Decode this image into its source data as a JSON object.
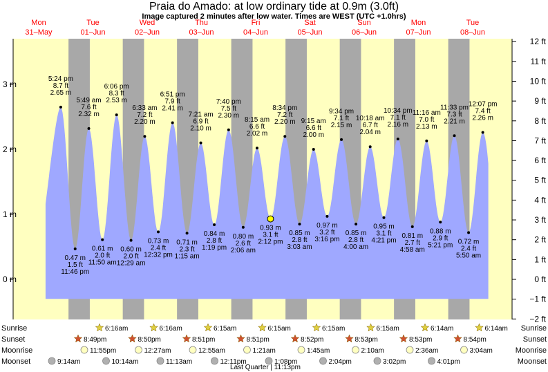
{
  "title": "Praia do Amado: at low  ordinary tide at 0.9m (3.0ft)",
  "subtitle": "Image captured 2 minutes after low water. Times are WEST (UTC +1.0hrs)",
  "colors": {
    "day": "#ffffc0",
    "night": "#a8a8a8",
    "water": "#9fa8ff",
    "date": "#ff0000",
    "sun_star": "#e0d040",
    "sunset_star": "#d05030",
    "moonrise": "#ffffc0",
    "moonset": "#b0b0b0"
  },
  "chart_data": {
    "type": "area",
    "title": "Praia do Amado: at low  ordinary tide at 0.9m (3.0ft)",
    "ylabel_left_unit": "m",
    "ylabel_right_unit": "ft",
    "ylim_m": [
      -0.78,
      3.82
    ],
    "left_ticks": [
      "0 m",
      "1 m",
      "2 m",
      "3 m"
    ],
    "right_ticks": [
      "−2 ft",
      "−1 ft",
      "0 ft",
      "1 ft",
      "2 ft",
      "3 ft",
      "4 ft",
      "5 ft",
      "6 ft",
      "7 ft",
      "8 ft",
      "9 ft",
      "10 ft",
      "11 ft",
      "12 ft"
    ],
    "days": [
      {
        "name": "Mon",
        "date": "31–May"
      },
      {
        "name": "Tue",
        "date": "01–Jun"
      },
      {
        "name": "Wed",
        "date": "02–Jun"
      },
      {
        "name": "Thu",
        "date": "03–Jun"
      },
      {
        "name": "Fri",
        "date": "04–Jun"
      },
      {
        "name": "Sat",
        "date": "05–Jun"
      },
      {
        "name": "Sun",
        "date": "06–Jun"
      },
      {
        "name": "Mon",
        "date": "07–Jun"
      },
      {
        "name": "Tue",
        "date": "08–Jun"
      }
    ],
    "current_level_m": 0.93,
    "extremes": [
      {
        "type": "high",
        "time": "5:24 pm",
        "ft": "8.7 ft",
        "m": 2.65,
        "m_label": "2.65 m"
      },
      {
        "type": "low",
        "time": "11:46 pm",
        "ft": "1.5 ft",
        "m": 0.47,
        "m_label": "0.47 m"
      },
      {
        "type": "high",
        "time": "5:49 am",
        "ft": "7.6 ft",
        "m": 2.32,
        "m_label": "2.32 m"
      },
      {
        "type": "low",
        "time": "11:50 am",
        "ft": "2.0 ft",
        "m": 0.61,
        "m_label": "0.61 m"
      },
      {
        "type": "high",
        "time": "6:06 pm",
        "ft": "8.3 ft",
        "m": 2.53,
        "m_label": "2.53 m"
      },
      {
        "type": "low",
        "time": "12:29 am",
        "ft": "2.0 ft",
        "m": 0.6,
        "m_label": "0.60 m"
      },
      {
        "type": "high",
        "time": "6:33 am",
        "ft": "7.2 ft",
        "m": 2.2,
        "m_label": "2.20 m"
      },
      {
        "type": "low",
        "time": "12:32 pm",
        "ft": "2.4 ft",
        "m": 0.73,
        "m_label": "0.73 m"
      },
      {
        "type": "high",
        "time": "6:51 pm",
        "ft": "7.9 ft",
        "m": 2.41,
        "m_label": "2.41 m"
      },
      {
        "type": "low",
        "time": "1:15 am",
        "ft": "2.3 ft",
        "m": 0.71,
        "m_label": "0.71 m"
      },
      {
        "type": "high",
        "time": "7:21 am",
        "ft": "6.9 ft",
        "m": 2.1,
        "m_label": "2.10 m"
      },
      {
        "type": "low",
        "time": "1:19 pm",
        "ft": "2.8 ft",
        "m": 0.84,
        "m_label": "0.84 m"
      },
      {
        "type": "high",
        "time": "7:40 pm",
        "ft": "7.5 ft",
        "m": 2.3,
        "m_label": "2.30 m"
      },
      {
        "type": "low",
        "time": "2:06 am",
        "ft": "2.6 ft",
        "m": 0.8,
        "m_label": "0.80 m"
      },
      {
        "type": "high",
        "time": "8:15 am",
        "ft": "6.6 ft",
        "m": 2.02,
        "m_label": "2.02 m"
      },
      {
        "type": "low",
        "time": "2:12 pm",
        "ft": "3.1 ft",
        "m": 0.93,
        "m_label": "0.93 m"
      },
      {
        "type": "high",
        "time": "8:34 pm",
        "ft": "7.2 ft",
        "m": 2.2,
        "m_label": "2.20 m"
      },
      {
        "type": "low",
        "time": "3:03 am",
        "ft": "2.8 ft",
        "m": 0.85,
        "m_label": "0.85 m"
      },
      {
        "type": "high",
        "time": "9:15 am",
        "ft": "6.6 ft",
        "m": 2.0,
        "m_label": "2.00 m"
      },
      {
        "type": "low",
        "time": "3:16 pm",
        "ft": "3.2 ft",
        "m": 0.97,
        "m_label": "0.97 m"
      },
      {
        "type": "high",
        "time": "9:34 pm",
        "ft": "7.1 ft",
        "m": 2.15,
        "m_label": "2.15 m"
      },
      {
        "type": "low",
        "time": "4:00 am",
        "ft": "2.8 ft",
        "m": 0.85,
        "m_label": "0.85 m"
      },
      {
        "type": "high",
        "time": "10:18 am",
        "ft": "6.7 ft",
        "m": 2.04,
        "m_label": "2.04 m"
      },
      {
        "type": "low",
        "time": "4:21 pm",
        "ft": "3.1 ft",
        "m": 0.95,
        "m_label": "0.95 m"
      },
      {
        "type": "high",
        "time": "10:34 pm",
        "ft": "7.1 ft",
        "m": 2.16,
        "m_label": "2.16 m"
      },
      {
        "type": "low",
        "time": "4:58 am",
        "ft": "2.7 ft",
        "m": 0.81,
        "m_label": "0.81 m"
      },
      {
        "type": "high",
        "time": "11:16 am",
        "ft": "7.0 ft",
        "m": 2.13,
        "m_label": "2.13 m"
      },
      {
        "type": "low",
        "time": "5:21 pm",
        "ft": "2.9 ft",
        "m": 0.88,
        "m_label": "0.88 m"
      },
      {
        "type": "high",
        "time": "11:33 pm",
        "ft": "7.3 ft",
        "m": 2.21,
        "m_label": "2.21 m"
      },
      {
        "type": "low",
        "time": "5:50 am",
        "ft": "2.4 ft",
        "m": 0.72,
        "m_label": "0.72 m"
      },
      {
        "type": "high",
        "time": "12:07 pm",
        "ft": "7.4 ft",
        "m": 2.26,
        "m_label": "2.26 m"
      }
    ]
  },
  "almanac": {
    "row_labels": [
      "Sunrise",
      "Sunset",
      "Moonrise",
      "Moonset"
    ],
    "sunrise": [
      "6:16am",
      "6:16am",
      "6:15am",
      "6:15am",
      "6:15am",
      "6:15am",
      "6:14am",
      "6:14am"
    ],
    "sunset": [
      "8:49pm",
      "8:50pm",
      "8:51pm",
      "8:51pm",
      "8:52pm",
      "8:53pm",
      "8:53pm",
      "8:54pm"
    ],
    "moonrise": [
      "11:55pm",
      "12:27am",
      "12:55am",
      "1:21am",
      "1:45am",
      "2:10am",
      "2:36am",
      "3:04am"
    ],
    "moonset": [
      "9:14am",
      "10:14am",
      "11:13am",
      "12:11pm",
      "1:08pm",
      "2:04pm",
      "3:02pm",
      "4:01pm"
    ],
    "moon_phase": "Last Quarter | 11:13pm"
  }
}
